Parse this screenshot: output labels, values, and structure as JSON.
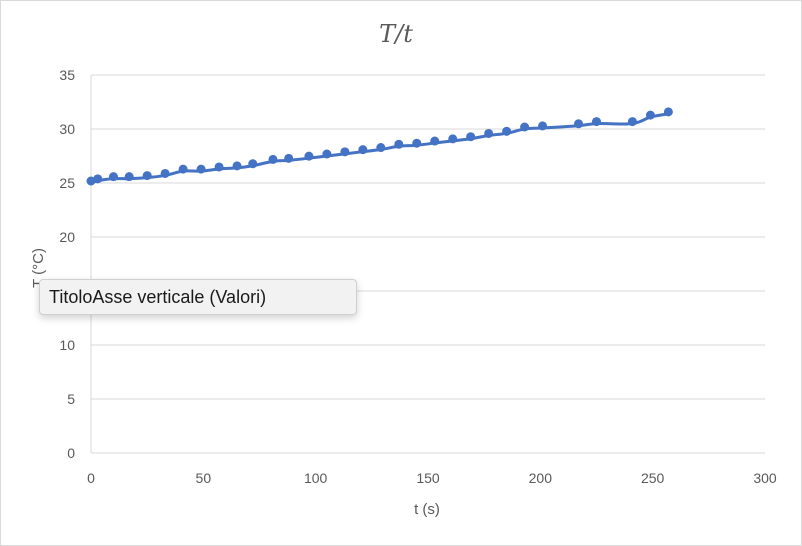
{
  "tooltip": {
    "text": "TitoloAsse verticale (Valori)"
  },
  "colors": {
    "series": "#4472c4",
    "grid": "#d9d9d9",
    "text": "#595959"
  },
  "chart_data": {
    "type": "scatter",
    "title": "T/t",
    "xlabel": "t (s)",
    "ylabel": "T (°C)",
    "xlim": [
      0,
      300
    ],
    "ylim": [
      0,
      35
    ],
    "xticks": [
      0,
      50,
      100,
      150,
      200,
      250,
      300
    ],
    "yticks": [
      0,
      5,
      10,
      15,
      20,
      25,
      30,
      35
    ],
    "grid": "horizontal",
    "legend": "none",
    "series": [
      {
        "x": [
          0,
          3,
          10,
          17,
          25,
          33,
          41,
          49,
          57,
          65,
          72,
          81,
          88,
          97,
          105,
          113,
          121,
          129,
          137,
          145,
          153,
          161,
          169,
          177,
          185,
          193,
          201,
          217,
          225,
          241,
          249,
          257
        ],
        "y": [
          25.0,
          25.2,
          25.4,
          25.4,
          25.5,
          25.7,
          26.1,
          26.1,
          26.3,
          26.4,
          26.6,
          27.0,
          27.1,
          27.3,
          27.5,
          27.7,
          27.9,
          28.1,
          28.4,
          28.5,
          28.7,
          28.9,
          29.1,
          29.4,
          29.6,
          30.0,
          30.1,
          30.3,
          30.5,
          30.5,
          31.1,
          31.4
        ]
      }
    ]
  }
}
